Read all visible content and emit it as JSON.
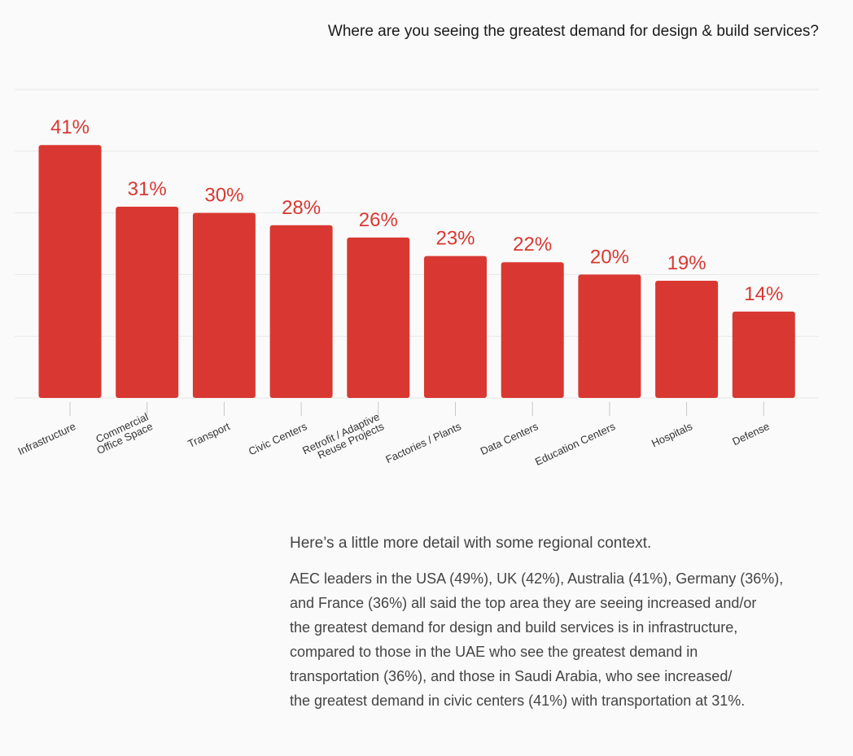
{
  "chart_data": {
    "type": "bar",
    "title": "Where are you seeing the greatest demand for design & build services?",
    "categories": [
      [
        "Infrastructure"
      ],
      [
        "Commercial",
        "Office Space"
      ],
      [
        "Transport"
      ],
      [
        "Civic Centers"
      ],
      [
        "Retrofit / Adaptive",
        "Reuse Projects"
      ],
      [
        "Factories / Plants"
      ],
      [
        "Data Centers"
      ],
      [
        "Education Centers"
      ],
      [
        "Hospitals"
      ],
      [
        "Defense"
      ]
    ],
    "values": [
      41,
      31,
      30,
      28,
      26,
      23,
      22,
      20,
      19,
      14
    ],
    "value_labels": [
      "41%",
      "31%",
      "30%",
      "28%",
      "26%",
      "23%",
      "22%",
      "20%",
      "19%",
      "14%"
    ],
    "unit": "%",
    "ylim": [
      0,
      50
    ],
    "grid": true,
    "legend": "none",
    "colors": {
      "bar": "#d93832",
      "value_label": "#d93832",
      "grid": "#e8e8e8"
    }
  },
  "text": {
    "intro": "Here’s a little more detail with some regional context.",
    "detail_lines": [
      "AEC leaders in the USA (49%), UK (42%), Australia (41%), Germany (36%),",
      "and France (36%) all said the top area they are seeing increased and/or",
      "the greatest demand for design and build services is in infrastructure,",
      "compared to those in the UAE who see the greatest demand in",
      "transportation (36%), and those in Saudi Arabia, who see increased/",
      "the greatest demand in civic centers (41%) with transportation at 31%."
    ]
  }
}
